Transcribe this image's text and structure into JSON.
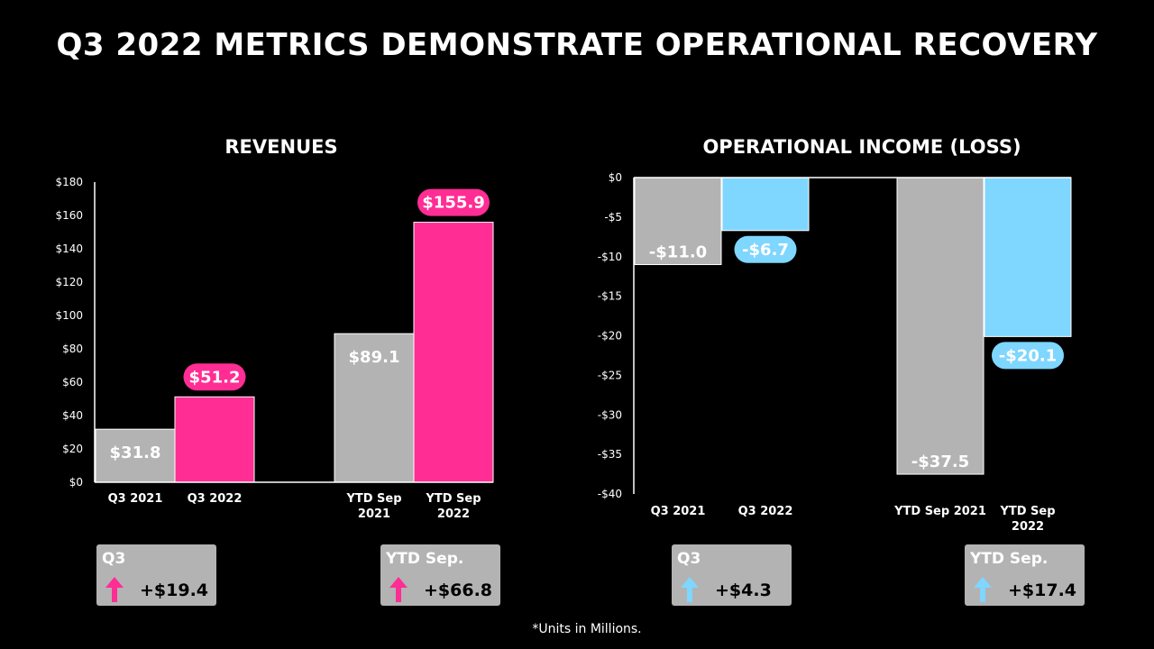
{
  "title": "Q3 2022 METRICS DEMONSTRATE OPERATIONAL RECOVERY",
  "footnote": "*Units in Millions.",
  "colors": {
    "gray": "#b3b3b3",
    "pink": "#ff2d94",
    "blue": "#7fd6ff",
    "background": "#000000"
  },
  "chart_data": [
    {
      "type": "bar",
      "title": "REVENUES",
      "yticks": [
        "$0",
        "$20",
        "$40",
        "$60",
        "$80",
        "$100",
        "$120",
        "$140",
        "$160",
        "$180"
      ],
      "ylim": [
        0,
        180
      ],
      "categories": [
        "Q3 2021",
        "Q3 2022",
        "YTD Sep 2021",
        "YTD Sep 2022"
      ],
      "category_lines": [
        [
          "Q3 2021"
        ],
        [
          "Q3 2022"
        ],
        [
          "YTD Sep",
          "2021"
        ],
        [
          "YTD Sep",
          "2022"
        ]
      ],
      "values": [
        31.8,
        51.2,
        89.1,
        155.9
      ],
      "data_labels": [
        "$31.8",
        "$51.2",
        "$89.1",
        "$155.9"
      ],
      "bar_colors": [
        "gray",
        "pink",
        "gray",
        "pink"
      ],
      "pill_labels": [
        false,
        true,
        false,
        true
      ],
      "grid": false
    },
    {
      "type": "bar",
      "title": "OPERATIONAL INCOME (LOSS)",
      "yticks": [
        "$0",
        "-$5",
        "-$10",
        "-$15",
        "-$20",
        "-$25",
        "-$30",
        "-$35",
        "-$40"
      ],
      "ylim": [
        -40,
        0
      ],
      "categories": [
        "Q3 2021",
        "Q3 2022",
        "YTD Sep 2021",
        "YTD Sep 2022"
      ],
      "category_lines": [
        [
          "Q3 2021"
        ],
        [
          "Q3 2022"
        ],
        [
          "YTD Sep 2021"
        ],
        [
          "YTD Sep",
          "2022"
        ]
      ],
      "values": [
        -11.0,
        -6.7,
        -37.5,
        -20.1
      ],
      "data_labels": [
        "-$11.0",
        "-$6.7",
        "-$37.5",
        "-$20.1"
      ],
      "bar_colors": [
        "gray",
        "blue",
        "gray",
        "blue"
      ],
      "pill_labels": [
        false,
        true,
        false,
        true
      ],
      "grid": false
    }
  ],
  "cards": [
    {
      "label": "Q3",
      "value": "+$19.4",
      "arrow": "up-arrow-icon",
      "color": "pink"
    },
    {
      "label": "YTD Sep.",
      "value": "+$66.8",
      "arrow": "up-arrow-icon",
      "color": "pink"
    },
    {
      "label": "Q3",
      "value": "+$4.3",
      "arrow": "up-arrow-icon",
      "color": "blue"
    },
    {
      "label": "YTD Sep.",
      "value": "+$17.4",
      "arrow": "up-arrow-icon",
      "color": "blue"
    }
  ]
}
